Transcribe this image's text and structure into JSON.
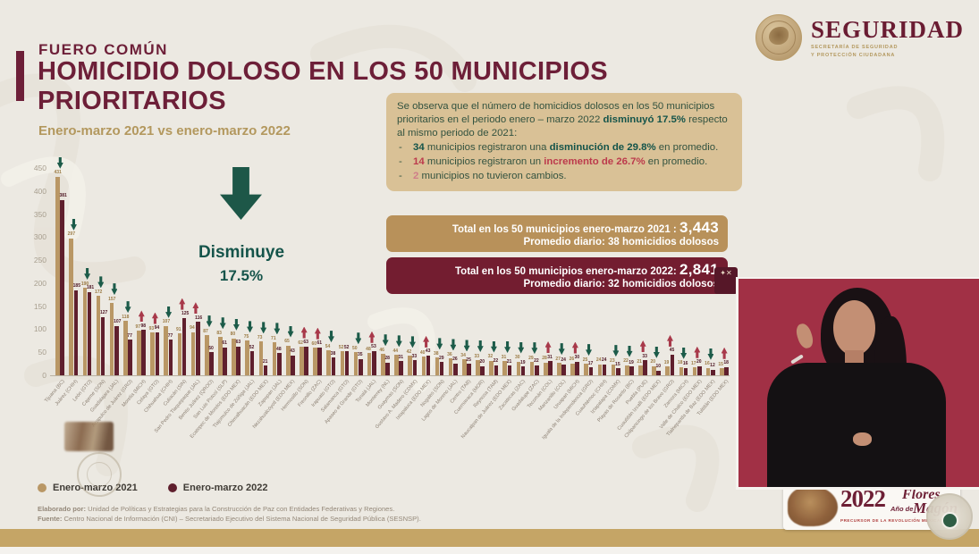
{
  "colors": {
    "brand_maroon": "#6d1f38",
    "gold": "#b3985e",
    "obs_bg": "#d9c196",
    "banner_2021": "#b8915a",
    "banner_2022": "#731d30",
    "decrease_green": "#1d5748",
    "increase_red": "#a8394a",
    "bar_2021": "#b99765",
    "bar_2022": "#5f1f2d",
    "strip_gold": "#c5a566",
    "video_bg": "#a13045"
  },
  "header": {
    "kicker": "FUERO COMÚN",
    "title": "HOMICIDIO DOLOSO EN LOS 50 MUNICIPIOS PRIORITARIOS",
    "subtitle": "Enero-marzo 2021 vs enero-marzo 2022"
  },
  "logo": {
    "wordmark": "SEGURIDAD",
    "sub1": "SECRETARÍA DE SEGURIDAD",
    "sub2": "Y PROTECCIÓN CIUDADANA"
  },
  "observation": {
    "dash": "-",
    "intro1": "Se observa que el número de homicidios dolosos en los 50 municipios prioritarios en el periodo enero – marzo 2022 ",
    "intro_hl": "disminuyó 17.5%",
    "intro2": " respecto al mismo periodo de 2021:",
    "b1_num": "34",
    "b1_t1": " municipios registraron una ",
    "b1_hl": "disminución de 29.8%",
    "b1_t2": " en promedio.",
    "b2_num": "14",
    "b2_t1": " municipios registraron un ",
    "b2_hl": "incremento de 26.7%",
    "b2_t2": " en promedio.",
    "b3_num": "2",
    "b3_t1": " municipios no tuvieron cambios."
  },
  "banners": [
    {
      "label": "Total en los 50 municipios enero-marzo 2021 : ",
      "total": "3,443",
      "line2": "Promedio diario: 38 homicidios dolosos"
    },
    {
      "label": "Total en los 50 municipios enero-marzo 2022: ",
      "total": "2,841",
      "line2": "Promedio diario: 32 homicidios dolosos"
    }
  ],
  "decrease_callout": {
    "label": "Disminuye",
    "pct": "17.5%"
  },
  "legend": [
    {
      "label": "Enero-marzo 2021",
      "color": "#b99765"
    },
    {
      "label": "Enero-marzo 2022",
      "color": "#5f1f2d"
    }
  ],
  "footer": {
    "elaborado_label": "Elaborado por:",
    "elaborado_text": " Unidad de Políticas y Estrategias para la Construcción de Paz con Entidades Federativas y Regiones.",
    "fuente_label": "Fuente:",
    "fuente_text": " Centro Nacional de Información (CNI) – Secretariado Ejecutivo del Sistema Nacional de Seguridad Pública (SESNSP)."
  },
  "flores": {
    "year": "2022",
    "name1": "Flores",
    "pre": "Año de",
    "name2": "Magón",
    "tagline": "PRECURSOR DE LA REVOLUCIÓN MEXICANA"
  },
  "video_chip": {
    "glyphs": "✦✕"
  },
  "chart_data": {
    "type": "bar",
    "title": "Homicidio doloso en los 50 municipios prioritarios, enero-marzo 2021 vs enero-marzo 2022",
    "xlabel": "",
    "ylabel": "",
    "ylim": [
      0,
      450
    ],
    "ytick_step": 50,
    "yticks": [
      0,
      50,
      100,
      150,
      200,
      250,
      300,
      350,
      400,
      450
    ],
    "grid": false,
    "legend_position": "bottom-left",
    "series_names": [
      "Enero-marzo 2021",
      "Enero-marzo 2022"
    ],
    "change_key": {
      "down": "disminución (flecha verde)",
      "up": "incremento (flecha roja)",
      "same": "sin cambio"
    },
    "municipalities": [
      {
        "name": "Tijuana (BC)",
        "v2021": 431,
        "v2022": 381,
        "change": "down"
      },
      {
        "name": "Juárez (CHIH)",
        "v2021": 297,
        "v2022": 185,
        "change": "down"
      },
      {
        "name": "León (GTO)",
        "v2021": 190,
        "v2022": 181,
        "change": "down"
      },
      {
        "name": "Cajeme (SON)",
        "v2021": 172,
        "v2022": 127,
        "change": "down"
      },
      {
        "name": "Guadalajara (JAL)",
        "v2021": 157,
        "v2022": 107,
        "change": "down"
      },
      {
        "name": "Acapulco de Juárez (GRO)",
        "v2021": 118,
        "v2022": 77,
        "change": "down"
      },
      {
        "name": "Morelia (MICH)",
        "v2021": 97,
        "v2022": 98,
        "change": "up"
      },
      {
        "name": "Celaya (GTO)",
        "v2021": 93,
        "v2022": 94,
        "change": "up"
      },
      {
        "name": "Chihuahua (CHIH)",
        "v2021": 107,
        "v2022": 77,
        "change": "down"
      },
      {
        "name": "Culiacán (SIN)",
        "v2021": 91,
        "v2022": 125,
        "change": "up"
      },
      {
        "name": "San Pedro Tlaquepaque (JAL)",
        "v2021": 94,
        "v2022": 116,
        "change": "up"
      },
      {
        "name": "Benito Juárez (QROO)",
        "v2021": 87,
        "v2022": 50,
        "change": "down"
      },
      {
        "name": "San Luis Potosí (SLP)",
        "v2021": 83,
        "v2022": 61,
        "change": "down"
      },
      {
        "name": "Ecatepec de Morelos (EDO MEX)",
        "v2021": 80,
        "v2022": 63,
        "change": "down"
      },
      {
        "name": "Tlajomulco de Zúñiga (JAL)",
        "v2021": 75,
        "v2022": 52,
        "change": "down"
      },
      {
        "name": "Chimalhuacán (EDO MEX)",
        "v2021": 73,
        "v2022": 21,
        "change": "down"
      },
      {
        "name": "Zapopan (JAL)",
        "v2021": 71,
        "v2022": 48,
        "change": "down"
      },
      {
        "name": "Nezahualcóyotl (EDO MEX)",
        "v2021": 65,
        "v2022": 43,
        "change": "down"
      },
      {
        "name": "Hermosillo (SON)",
        "v2021": 62,
        "v2022": 63,
        "change": "up"
      },
      {
        "name": "Fresnillo (ZAC)",
        "v2021": 60,
        "v2022": 61,
        "change": "up"
      },
      {
        "name": "Irapuato (GTO)",
        "v2021": 54,
        "v2022": 38,
        "change": "down"
      },
      {
        "name": "Salamanca (GTO)",
        "v2021": 52,
        "v2022": 52,
        "change": "same"
      },
      {
        "name": "Apaseo el Grande (GTO)",
        "v2021": 50,
        "v2022": 35,
        "change": "down"
      },
      {
        "name": "Tonalá (JAL)",
        "v2021": 48,
        "v2022": 53,
        "change": "up"
      },
      {
        "name": "Monterrey (NL)",
        "v2021": 46,
        "v2022": 28,
        "change": "down"
      },
      {
        "name": "Guaymas (SON)",
        "v2021": 44,
        "v2022": 31,
        "change": "down"
      },
      {
        "name": "Gustavo A. Madero (CDMX)",
        "v2021": 42,
        "v2022": 33,
        "change": "down"
      },
      {
        "name": "Ixtapaluca (EDO MEX)",
        "v2021": 40,
        "v2022": 43,
        "change": "up"
      },
      {
        "name": "Nogales (SON)",
        "v2021": 38,
        "v2022": 29,
        "change": "down"
      },
      {
        "name": "Lagos de Moreno (JAL)",
        "v2021": 36,
        "v2022": 26,
        "change": "down"
      },
      {
        "name": "Centro (TAB)",
        "v2021": 34,
        "v2022": 25,
        "change": "down"
      },
      {
        "name": "Cuernavaca (MOR)",
        "v2021": 33,
        "v2022": 20,
        "change": "down"
      },
      {
        "name": "Reynosa (TAM)",
        "v2021": 32,
        "v2022": 22,
        "change": "down"
      },
      {
        "name": "Naucalpan de Juárez (EDO MEX)",
        "v2021": 31,
        "v2022": 21,
        "change": "down"
      },
      {
        "name": "Zacatecas (ZAC)",
        "v2021": 30,
        "v2022": 19,
        "change": "down"
      },
      {
        "name": "Guadalupe (ZAC)",
        "v2021": 29,
        "v2022": 22,
        "change": "down"
      },
      {
        "name": "Tecomán (COL)",
        "v2021": 28,
        "v2022": 31,
        "change": "up"
      },
      {
        "name": "Manzanillo (COL)",
        "v2021": 27,
        "v2022": 24,
        "change": "down"
      },
      {
        "name": "Uruapan (MICH)",
        "v2021": 26,
        "v2022": 30,
        "change": "up"
      },
      {
        "name": "Iguala de la Independencia (GRO)",
        "v2021": 25,
        "v2022": 17,
        "change": "down"
      },
      {
        "name": "Cuauhtémoc (CHIH)",
        "v2021": 24,
        "v2022": 24,
        "change": "same"
      },
      {
        "name": "Iztapalapa (CDMX)",
        "v2021": 23,
        "v2022": 15,
        "change": "down"
      },
      {
        "name": "Playas de Rosarito (BC)",
        "v2021": 22,
        "v2022": 19,
        "change": "down"
      },
      {
        "name": "Puebla (PUE)",
        "v2021": 21,
        "v2022": 33,
        "change": "up"
      },
      {
        "name": "Cuautitlán Izcalli (EDO MEX)",
        "v2021": 20,
        "v2022": 10,
        "change": "down"
      },
      {
        "name": "Chilpancingo de los Bravo (GRO)",
        "v2021": 19,
        "v2022": 45,
        "change": "up"
      },
      {
        "name": "Zamora (MICH)",
        "v2021": 18,
        "v2022": 16,
        "change": "down"
      },
      {
        "name": "Valle de Chalco (EDO MEX)",
        "v2021": 17,
        "v2022": 20,
        "change": "up"
      },
      {
        "name": "Tlalnepantla de Baz (EDO MEX)",
        "v2021": 16,
        "v2022": 12,
        "change": "down"
      },
      {
        "name": "Tultitlán (EDO MEX)",
        "v2021": 15,
        "v2022": 18,
        "change": "up"
      }
    ]
  }
}
